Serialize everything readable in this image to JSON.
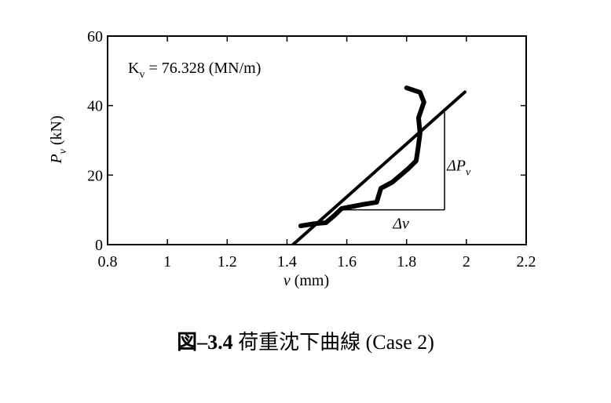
{
  "chart_data": {
    "type": "line",
    "annotation": {
      "main": "K",
      "sub": "v",
      "rest": " = 76.328 (MN/m)"
    },
    "x_label": {
      "main": "v",
      "rest": " (mm)"
    },
    "y_label": {
      "main": "P",
      "sub": "v",
      "rest": " (kN)"
    },
    "xlim": [
      0.8,
      2.2
    ],
    "xticks": [
      0.8,
      1,
      1.2,
      1.4,
      1.6,
      1.8,
      2,
      2.2
    ],
    "ylim": [
      0,
      60
    ],
    "yticks": [
      0,
      20,
      40,
      60
    ],
    "series": [
      {
        "color": "#000000",
        "x": [
          1.446,
          1.49,
          1.53,
          1.56,
          1.583,
          1.65,
          1.7,
          1.714,
          1.753,
          1.806,
          1.832,
          1.838,
          1.845,
          1.84,
          1.858,
          1.845,
          1.8
        ],
        "values": [
          5.4,
          6.0,
          6.3,
          8.5,
          10.4,
          11.5,
          12.2,
          16.2,
          18.0,
          21.9,
          24.1,
          27.5,
          32.0,
          36.5,
          41.0,
          43.8,
          45.1
        ]
      },
      {
        "color": "#000000",
        "x": [
          1.42,
          1.995
        ],
        "values": [
          0,
          43.9
        ]
      }
    ],
    "triangle": {
      "x": [
        1.583,
        1.927
      ],
      "y": [
        10,
        38.1
      ],
      "dx_label": {
        "main": "Δv"
      },
      "dy_label": {
        "main": "ΔP",
        "sub": "v"
      }
    },
    "caption": {
      "number": "図–3.4",
      "text": " 荷重沈下曲線 (Case 2)"
    }
  }
}
